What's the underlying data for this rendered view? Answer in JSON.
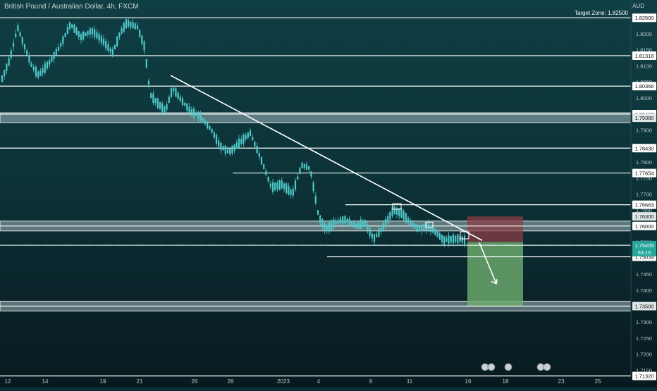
{
  "header": {
    "title": "British Pound / Australian Dollar, 4h, FXCM",
    "axis_unit": "AUD"
  },
  "colors": {
    "candle": "#4fc9c9",
    "level_line": "#ffffff",
    "zone": "#9fb7b9",
    "stop_zone": "#8a3d44",
    "target_zone": "#6fae6f",
    "price_line": "#4fc9c9"
  },
  "chart_data": {
    "type": "candlestick",
    "title": "British Pound / Australian Dollar, 4h, FXCM",
    "x_ticks": [
      "12",
      "14",
      "19",
      "21",
      "26",
      "28",
      "2023",
      "4",
      "9",
      "11",
      "16",
      "18",
      "23",
      "25"
    ],
    "y_ticks": [
      1.82,
      1.815,
      1.81,
      1.805,
      1.8,
      1.795,
      1.79,
      1.785,
      1.78,
      1.775,
      1.77,
      1.765,
      1.76,
      1.755,
      1.75,
      1.745,
      1.74,
      1.735,
      1.73,
      1.725,
      1.72,
      1.715
    ],
    "ylim": [
      1.7129,
      1.829
    ],
    "levels": [
      {
        "value": 1.825,
        "label": "1.82500"
      },
      {
        "value": 1.81316,
        "label": "1.81316"
      },
      {
        "value": 1.80366,
        "label": "1.80366"
      },
      {
        "value": 1.79493,
        "label": "1.79493"
      },
      {
        "value": 1.7843,
        "label": "1.78430"
      },
      {
        "value": 1.77654,
        "label": "1.77654"
      },
      {
        "value": 1.76663,
        "label": "1.76663"
      },
      {
        "value": 1.76,
        "label": "1.76000"
      },
      {
        "value": 1.754,
        "label": "1.75400"
      },
      {
        "value": 1.75039,
        "label": "1.75039"
      },
      {
        "value": 1.735,
        "label": "1.73500"
      },
      {
        "value": 1.7132,
        "label": "1.71320"
      }
    ],
    "zones": [
      1.7938,
      1.76,
      1.735
    ],
    "highlight_labels": [
      {
        "value": 1.7938,
        "label": "1.79380"
      },
      {
        "value": 1.763,
        "label": "1.76300"
      },
      {
        "value": 1.735,
        "label": "1.73500"
      }
    ],
    "target_label": "Target Zone: 1.82500",
    "current_price": 1.75405,
    "current_price_label": "1.75405",
    "countdown": "53:16",
    "position": {
      "entry": 1.755,
      "stop": 1.763,
      "target": 1.735
    },
    "trendline": {
      "start": 1.807,
      "end": 1.7555
    },
    "grid": false,
    "legend": "none"
  }
}
